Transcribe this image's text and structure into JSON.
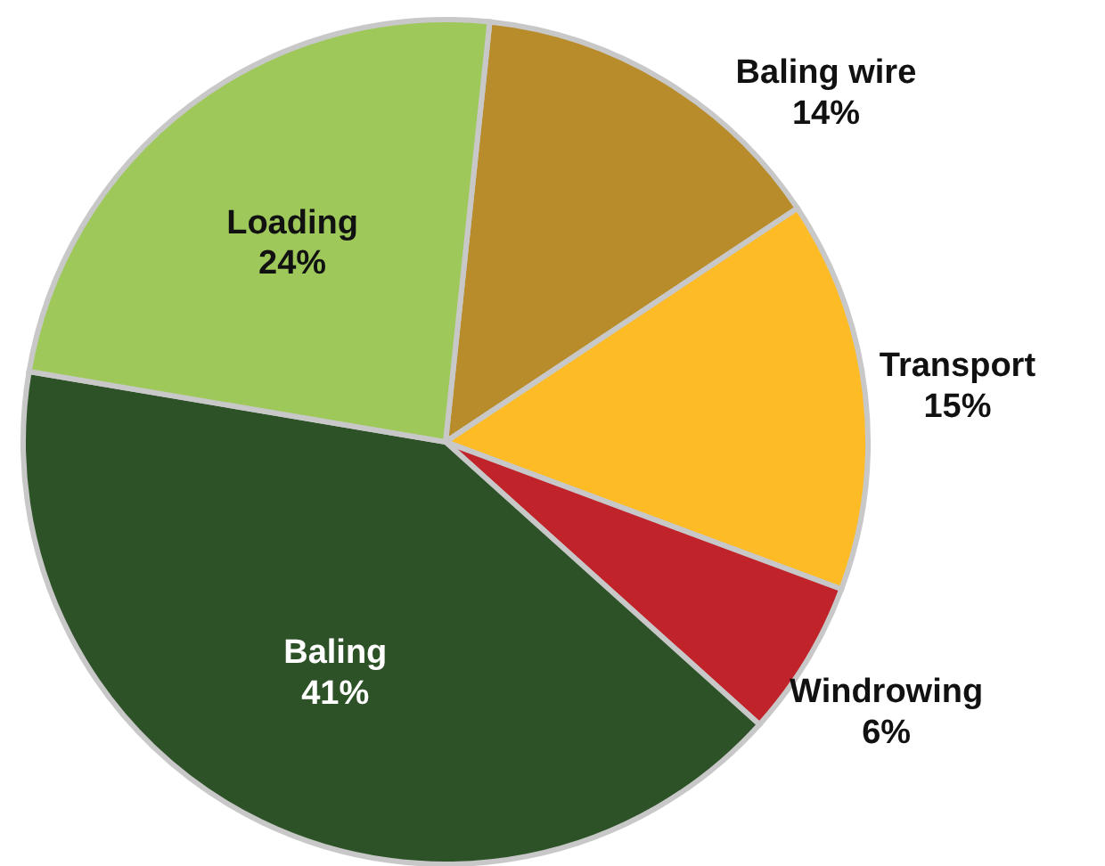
{
  "chart_data": {
    "type": "pie",
    "categories": [
      "Baling wire",
      "Transport",
      "Windrowing",
      "Baling",
      "Loading"
    ],
    "values": [
      14,
      15,
      6,
      41,
      24
    ],
    "colors": [
      "#b88c2a",
      "#fdbb26",
      "#c0232a",
      "#2e5228",
      "#9ec95a"
    ],
    "value_labels": [
      "14%",
      "15%",
      "6%",
      "41%",
      "24%"
    ]
  }
}
